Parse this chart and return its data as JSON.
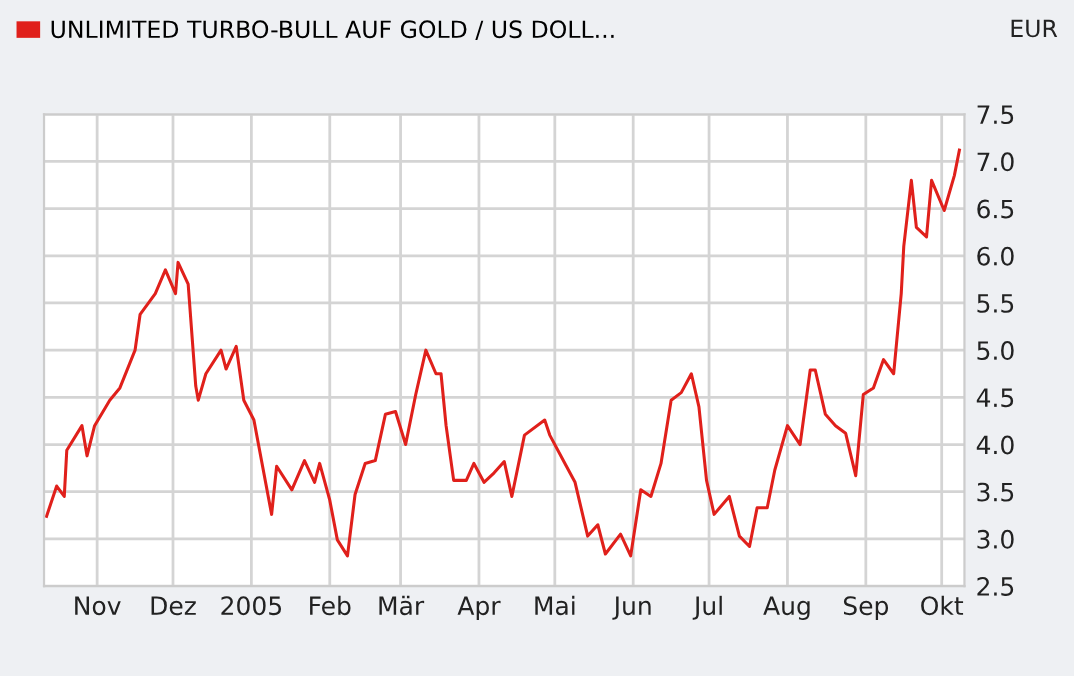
{
  "chart_data": {
    "type": "line",
    "ylabel": "EUR",
    "legend": "top left",
    "grid": true,
    "marker": "none",
    "line_style": "solid",
    "xlim": [
      "2004-10-11",
      "2005-10-10"
    ],
    "xticks": [
      {
        "value": "2004-11-01",
        "label": "Nov"
      },
      {
        "value": "2004-12-01",
        "label": "Dez"
      },
      {
        "value": "2005-01-01",
        "label": "2005"
      },
      {
        "value": "2005-02-01",
        "label": "Feb"
      },
      {
        "value": "2005-03-01",
        "label": "Mär"
      },
      {
        "value": "2005-04-01",
        "label": "Apr"
      },
      {
        "value": "2005-05-01",
        "label": "Mai"
      },
      {
        "value": "2005-06-01",
        "label": "Jun"
      },
      {
        "value": "2005-07-01",
        "label": "Jul"
      },
      {
        "value": "2005-08-01",
        "label": "Aug"
      },
      {
        "value": "2005-09-01",
        "label": "Sep"
      },
      {
        "value": "2005-10-01",
        "label": "Okt"
      }
    ],
    "ylim": [
      2.5,
      7.5
    ],
    "yticks": [
      {
        "value": 2.5,
        "label": "2.5"
      },
      {
        "value": 3,
        "label": "3.0"
      },
      {
        "value": 3.5,
        "label": "3.5"
      },
      {
        "value": 4,
        "label": "4.0"
      },
      {
        "value": 4.5,
        "label": "4.5"
      },
      {
        "value": 5,
        "label": "5.0"
      },
      {
        "value": 5.5,
        "label": "5.5"
      },
      {
        "value": 6,
        "label": "6.0"
      },
      {
        "value": 6.5,
        "label": "6.5"
      },
      {
        "value": 7,
        "label": "7.0"
      },
      {
        "value": 7.5,
        "label": "7.5"
      }
    ],
    "series": [
      {
        "name": "UNLIMITED TURBO-BULL AUF GOLD / US DOLL...",
        "color": "#e0201b",
        "x": [
          "2004-10-12",
          "2004-10-16",
          "2004-10-19",
          "2004-10-20",
          "2004-10-26",
          "2004-10-28",
          "2004-10-31",
          "2004-11-06",
          "2004-11-10",
          "2004-11-16",
          "2004-11-18",
          "2004-11-24",
          "2004-11-28",
          "2004-12-02",
          "2004-12-03",
          "2004-12-07",
          "2004-12-10",
          "2004-12-11",
          "2004-12-14",
          "2004-12-20",
          "2004-12-22",
          "2004-12-26",
          "2004-12-29",
          "2005-01-02",
          "2005-01-05",
          "2005-01-09",
          "2005-01-11",
          "2005-01-17",
          "2005-01-22",
          "2005-01-26",
          "2005-01-28",
          "2005-02-01",
          "2005-02-04",
          "2005-02-08",
          "2005-02-11",
          "2005-02-15",
          "2005-02-19",
          "2005-02-23",
          "2005-02-27",
          "2005-03-03",
          "2005-03-07",
          "2005-03-11",
          "2005-03-15",
          "2005-03-17",
          "2005-03-19",
          "2005-03-22",
          "2005-03-27",
          "2005-03-30",
          "2005-04-03",
          "2005-04-07",
          "2005-04-11",
          "2005-04-14",
          "2005-04-19",
          "2005-04-27",
          "2005-04-29",
          "2005-05-05",
          "2005-05-09",
          "2005-05-14",
          "2005-05-18",
          "2005-05-21",
          "2005-05-27",
          "2005-05-31",
          "2005-06-04",
          "2005-06-08",
          "2005-06-12",
          "2005-06-16",
          "2005-06-20",
          "2005-06-24",
          "2005-06-27",
          "2005-06-30",
          "2005-07-03",
          "2005-07-09",
          "2005-07-13",
          "2005-07-17",
          "2005-07-20",
          "2005-07-24",
          "2005-07-27",
          "2005-08-01",
          "2005-08-06",
          "2005-08-10",
          "2005-08-12",
          "2005-08-16",
          "2005-08-20",
          "2005-08-24",
          "2005-08-28",
          "2005-08-31",
          "2005-09-04",
          "2005-09-08",
          "2005-09-12",
          "2005-09-15",
          "2005-09-16",
          "2005-09-19",
          "2005-09-21",
          "2005-09-25",
          "2005-09-27",
          "2005-10-02",
          "2005-10-06",
          "2005-10-08"
        ],
        "values": [
          3.24,
          3.56,
          3.45,
          3.94,
          4.2,
          3.88,
          4.2,
          4.47,
          4.6,
          5.0,
          5.38,
          5.6,
          5.85,
          5.6,
          5.93,
          5.7,
          4.62,
          4.47,
          4.75,
          5.0,
          4.8,
          5.04,
          4.47,
          4.26,
          3.83,
          3.26,
          3.77,
          3.52,
          3.83,
          3.6,
          3.8,
          3.41,
          2.99,
          2.82,
          3.47,
          3.8,
          3.83,
          4.32,
          4.35,
          4.0,
          4.53,
          5.0,
          4.75,
          4.75,
          4.2,
          3.62,
          3.62,
          3.8,
          3.6,
          3.7,
          3.82,
          3.45,
          4.1,
          4.26,
          4.1,
          3.8,
          3.6,
          3.03,
          3.15,
          2.84,
          3.05,
          2.82,
          3.52,
          3.45,
          3.8,
          4.47,
          4.55,
          4.75,
          4.4,
          3.62,
          3.26,
          3.45,
          3.03,
          2.92,
          3.33,
          3.33,
          3.73,
          4.2,
          4.0,
          4.79,
          4.79,
          4.32,
          4.2,
          4.12,
          3.67,
          4.53,
          4.6,
          4.9,
          4.75,
          5.6,
          6.1,
          6.8,
          6.3,
          6.2,
          6.8,
          6.48,
          6.85,
          7.12
        ]
      }
    ]
  }
}
